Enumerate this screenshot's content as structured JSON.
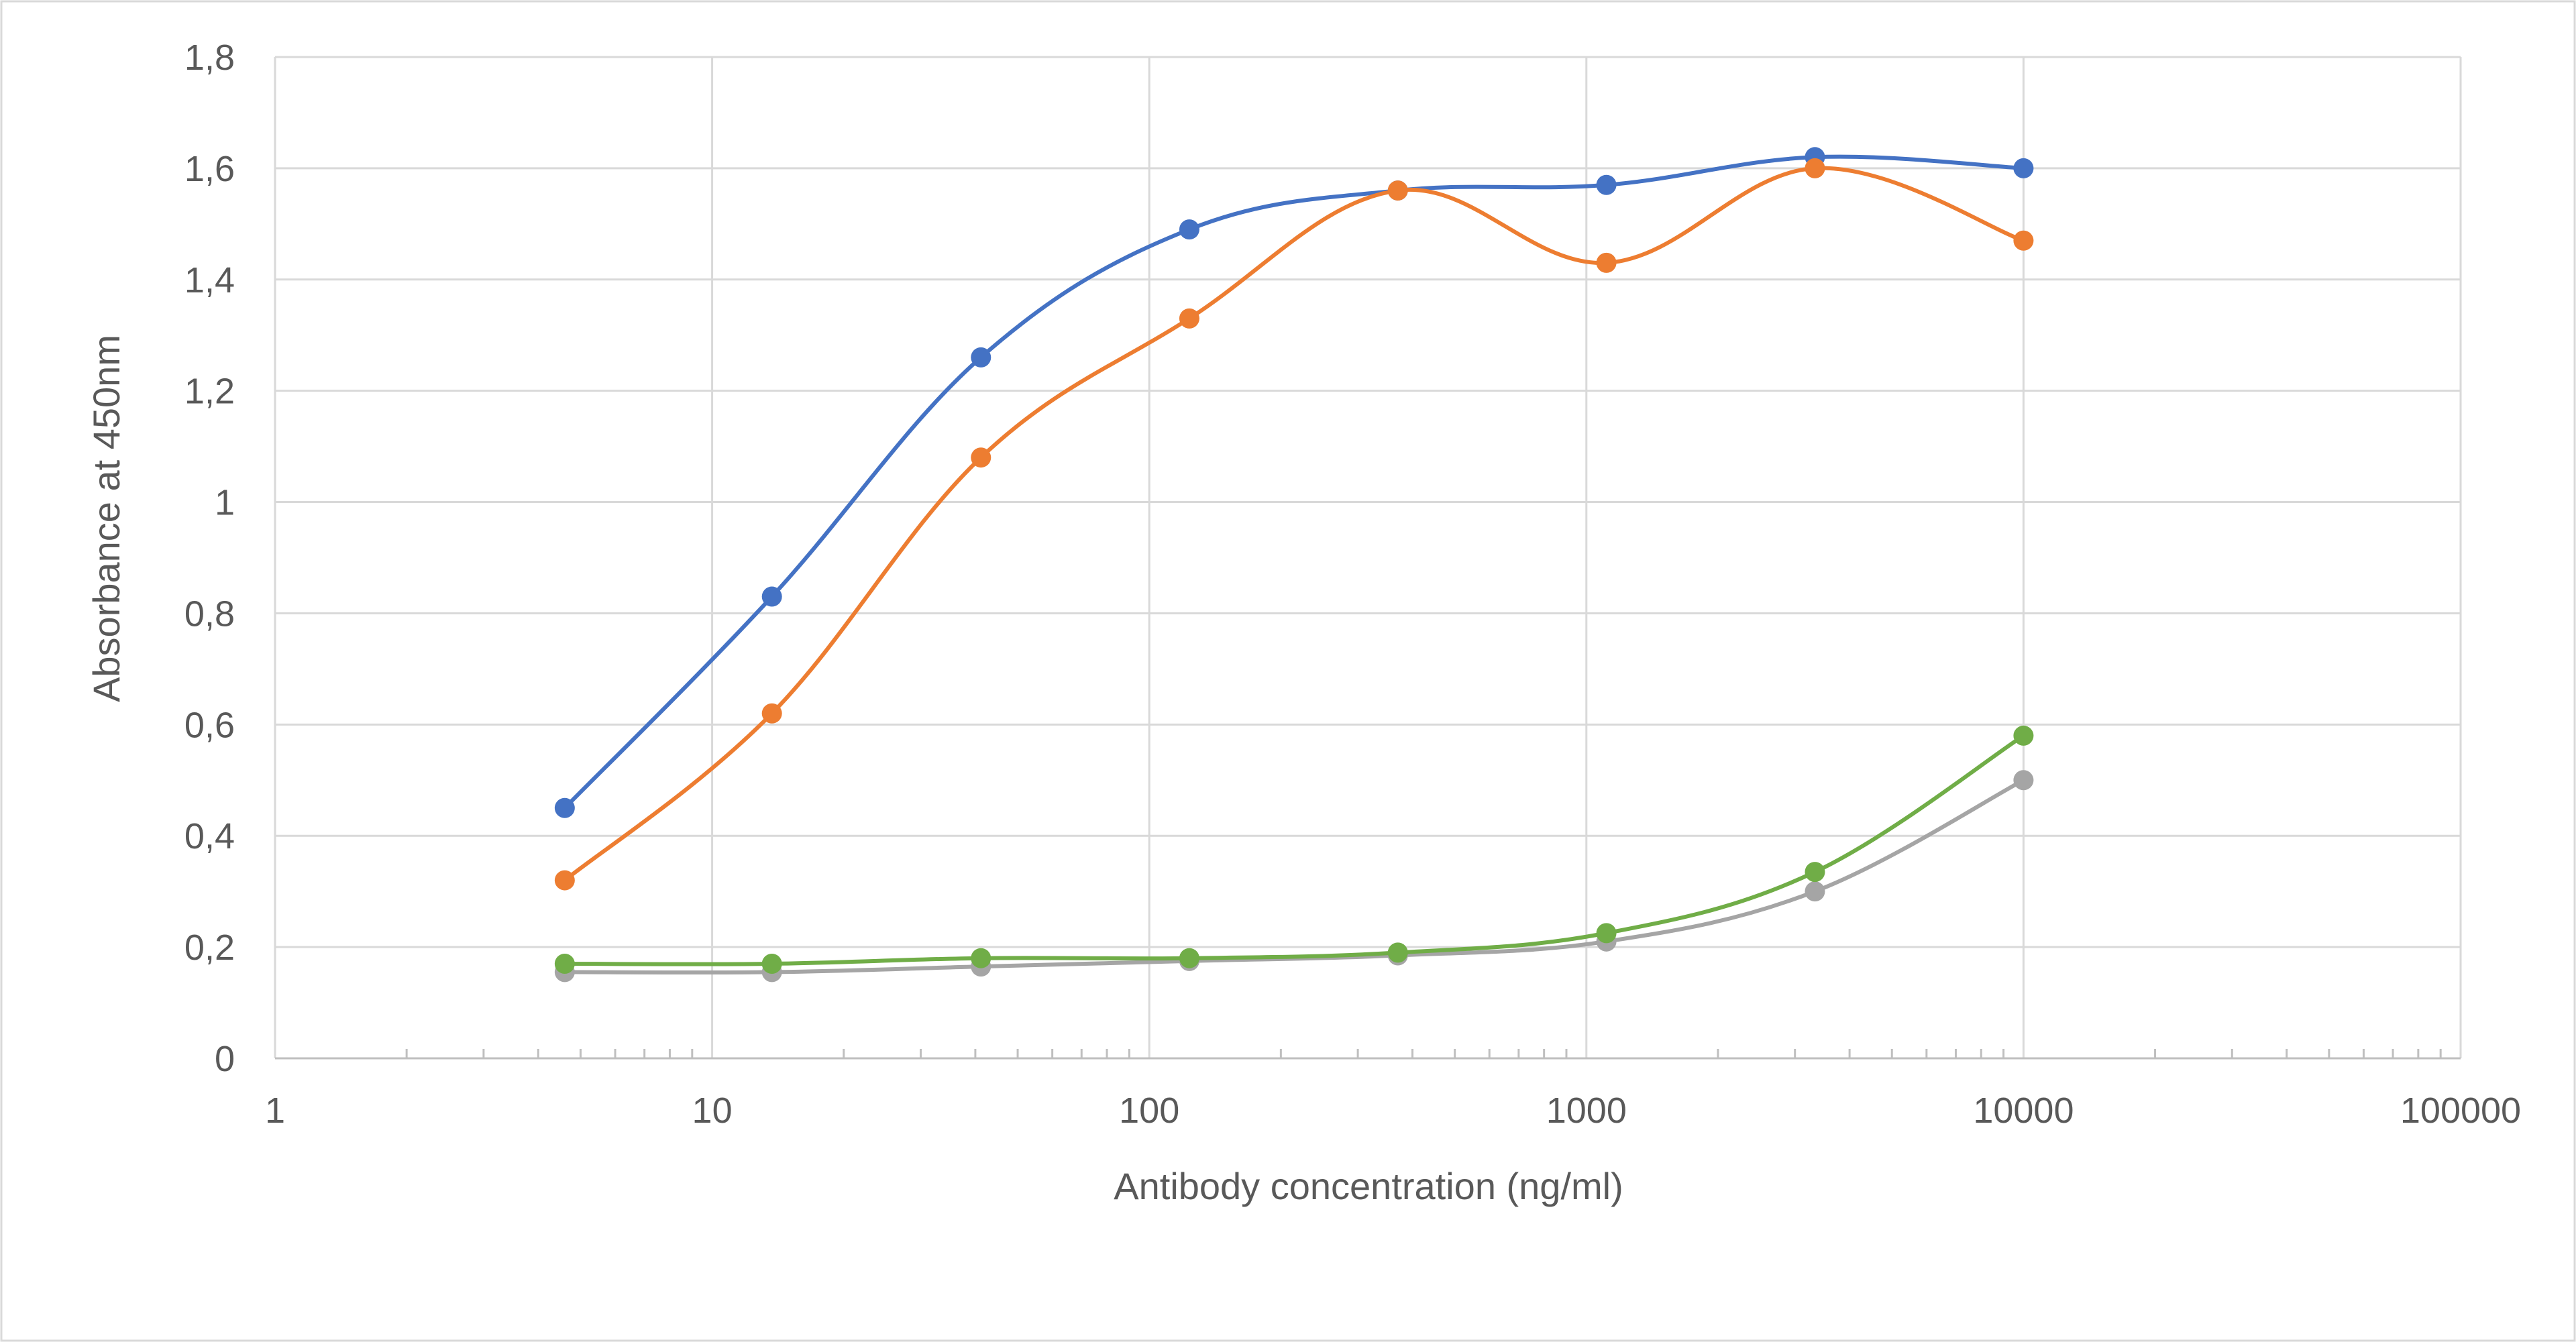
{
  "chart_data": {
    "type": "line",
    "title": "",
    "xlabel": "Antibody concentration (ng/ml)",
    "ylabel": "Absorbance at 450nm",
    "x_scale": "log",
    "xlim": [
      1,
      100000
    ],
    "ylim": [
      0,
      1.8
    ],
    "x_ticks": [
      "1",
      "10",
      "100",
      "1000",
      "10000",
      "100000"
    ],
    "y_ticks": [
      "0",
      "0,2",
      "0,4",
      "0,6",
      "0,8",
      "1",
      "1,2",
      "1,4",
      "1,6",
      "1,8"
    ],
    "grid": true,
    "legend": "none",
    "x": [
      4.6,
      13.7,
      41.2,
      123.5,
      370.4,
      1111,
      3333,
      10000
    ],
    "series": [
      {
        "color": "#4472c4",
        "values": [
          0.45,
          0.83,
          1.26,
          1.49,
          1.56,
          1.57,
          1.62,
          1.6
        ]
      },
      {
        "color": "#ed7d31",
        "values": [
          0.32,
          0.62,
          1.08,
          1.33,
          1.56,
          1.43,
          1.6,
          1.47
        ]
      },
      {
        "color": "#a5a5a5",
        "values": [
          0.155,
          0.155,
          0.165,
          0.175,
          0.185,
          0.21,
          0.3,
          0.5
        ]
      },
      {
        "color": "#70ad47",
        "values": [
          0.17,
          0.17,
          0.18,
          0.18,
          0.19,
          0.225,
          0.335,
          0.58
        ]
      }
    ]
  }
}
